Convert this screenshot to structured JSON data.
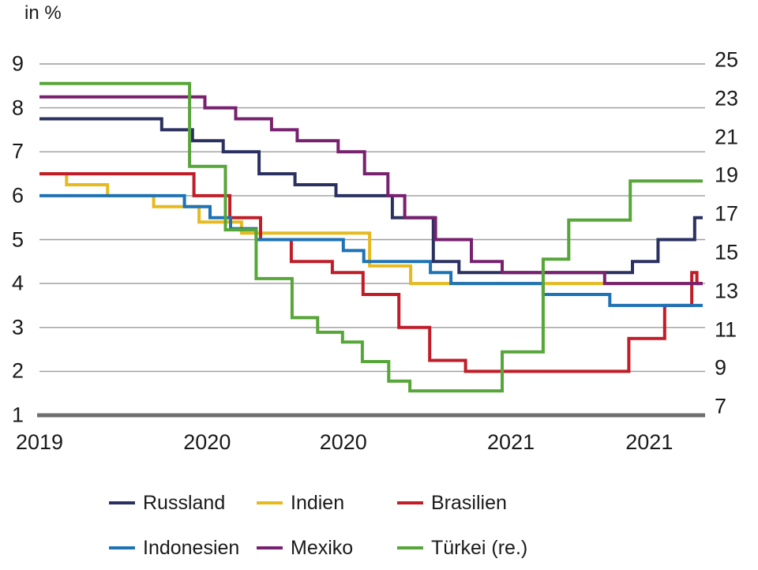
{
  "header": {
    "unit_label": "in %"
  },
  "chart_data": {
    "type": "line",
    "step_style": "step-after",
    "title": "",
    "unit_label": "in %",
    "x_axis": {
      "start_day": 0,
      "end_day": 906,
      "note_days_since": "2019-01-01",
      "tick_labels": [
        {
          "label": "2019",
          "day": 0
        },
        {
          "label": "2020",
          "day": 229
        },
        {
          "label": "2020",
          "day": 415
        },
        {
          "label": "2021",
          "day": 644
        },
        {
          "label": "2021",
          "day": 833
        }
      ]
    },
    "left_axis": {
      "min": 1,
      "max": 9,
      "ticks": [
        9,
        8,
        7,
        6,
        5,
        4,
        3,
        2,
        1
      ]
    },
    "right_axis": {
      "min": 7,
      "max": 25,
      "ticks": [
        25,
        23,
        21,
        19,
        17,
        15,
        13,
        11,
        9,
        7
      ]
    },
    "grid": {
      "line_color": "#9b9b9b",
      "baseline_color": "#6f6f6f"
    },
    "series": [
      {
        "name": "Russland",
        "axis": "left",
        "color": "#2a3160",
        "points": [
          [
            0,
            7.75
          ],
          [
            167,
            7.5
          ],
          [
            209,
            7.25
          ],
          [
            251,
            7.0
          ],
          [
            300,
            6.5
          ],
          [
            349,
            6.25
          ],
          [
            405,
            6.0
          ],
          [
            482,
            5.5
          ],
          [
            538,
            4.5
          ],
          [
            573,
            4.25
          ],
          [
            810,
            4.5
          ],
          [
            845,
            5.0
          ],
          [
            895,
            5.5
          ]
        ]
      },
      {
        "name": "Indien",
        "axis": "left",
        "color": "#e6ba1e",
        "points": [
          [
            0,
            6.5
          ],
          [
            37,
            6.25
          ],
          [
            93,
            6.0
          ],
          [
            156,
            5.75
          ],
          [
            218,
            5.4
          ],
          [
            276,
            5.15
          ],
          [
            451,
            4.4
          ],
          [
            507,
            4.0
          ]
        ]
      },
      {
        "name": "Brasilien",
        "axis": "left",
        "color": "#c01d28",
        "points": [
          [
            0,
            6.5
          ],
          [
            211,
            6.0
          ],
          [
            260,
            5.5
          ],
          [
            302,
            5.0
          ],
          [
            344,
            4.5
          ],
          [
            400,
            4.25
          ],
          [
            442,
            3.75
          ],
          [
            491,
            3.0
          ],
          [
            533,
            2.25
          ],
          [
            582,
            2.0
          ],
          [
            805,
            2.75
          ],
          [
            854,
            3.5
          ],
          [
            891,
            4.25
          ],
          [
            898,
            4.0
          ]
        ]
      },
      {
        "name": "Indonesien",
        "axis": "left",
        "color": "#1e73b5",
        "points": [
          [
            0,
            6.0
          ],
          [
            198,
            5.75
          ],
          [
            233,
            5.5
          ],
          [
            261,
            5.25
          ],
          [
            296,
            5.0
          ],
          [
            415,
            4.75
          ],
          [
            443,
            4.5
          ],
          [
            534,
            4.25
          ],
          [
            562,
            4.0
          ],
          [
            688,
            3.75
          ],
          [
            779,
            3.5
          ]
        ]
      },
      {
        "name": "Mexiko",
        "axis": "left",
        "color": "#77216f",
        "points": [
          [
            0,
            8.25
          ],
          [
            226,
            8.0
          ],
          [
            268,
            7.75
          ],
          [
            317,
            7.5
          ],
          [
            352,
            7.25
          ],
          [
            408,
            7.0
          ],
          [
            444,
            6.5
          ],
          [
            476,
            6.0
          ],
          [
            499,
            5.5
          ],
          [
            541,
            5.0
          ],
          [
            590,
            4.5
          ],
          [
            632,
            4.25
          ],
          [
            772,
            4.0
          ]
        ]
      },
      {
        "name": "Türkei",
        "axis": "right",
        "color": "#57a639",
        "points": [
          [
            0,
            24.0
          ],
          [
            205,
            19.75
          ],
          [
            254,
            16.5
          ],
          [
            296,
            14.0
          ],
          [
            345,
            12.0
          ],
          [
            380,
            11.25
          ],
          [
            414,
            10.75
          ],
          [
            441,
            9.75
          ],
          [
            477,
            8.75
          ],
          [
            506,
            8.25
          ],
          [
            632,
            10.25
          ],
          [
            688,
            15.0
          ],
          [
            723,
            17.0
          ],
          [
            807,
            19.0
          ]
        ]
      }
    ]
  },
  "legend": {
    "items": [
      {
        "label": "Russland",
        "color": "#2a3160"
      },
      {
        "label": "Indien",
        "color": "#e6ba1e"
      },
      {
        "label": "Brasilien",
        "color": "#c01d28"
      },
      {
        "label": "Indonesien",
        "color": "#1e73b5"
      },
      {
        "label": "Mexiko",
        "color": "#77216f"
      },
      {
        "label": "Türkei (re.)",
        "color": "#57a639"
      }
    ]
  }
}
